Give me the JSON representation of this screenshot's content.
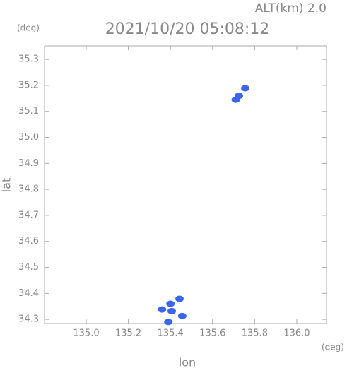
{
  "chart_data": {
    "type": "scatter",
    "title": "2021/10/20 05:08:12",
    "subtitle": "ALT(km) 2.0",
    "xlabel": "lon",
    "ylabel": "lat",
    "x_unit": "(deg)",
    "y_unit": "(deg)",
    "x": [
      135.755,
      135.725,
      135.71,
      135.443,
      135.4,
      135.36,
      135.406,
      135.456,
      135.39
    ],
    "values": [
      35.189,
      35.16,
      35.145,
      34.379,
      34.36,
      34.338,
      34.332,
      34.313,
      34.29
    ],
    "color": "#3a66ee",
    "xlim": [
      134.802,
      136.141
    ],
    "ylim": [
      34.284,
      35.352
    ],
    "xticks": [
      {
        "value": 135,
        "label": "135.0"
      },
      135.2,
      135.4,
      135.6,
      135.8,
      {
        "value": 136,
        "label": "136.0"
      }
    ],
    "yticks": [
      34.3,
      34.4,
      34.5,
      34.6,
      34.7,
      34.8,
      34.9,
      {
        "value": 35,
        "label": "35.0"
      },
      35.1,
      35.2,
      35.3
    ],
    "grid": false
  }
}
